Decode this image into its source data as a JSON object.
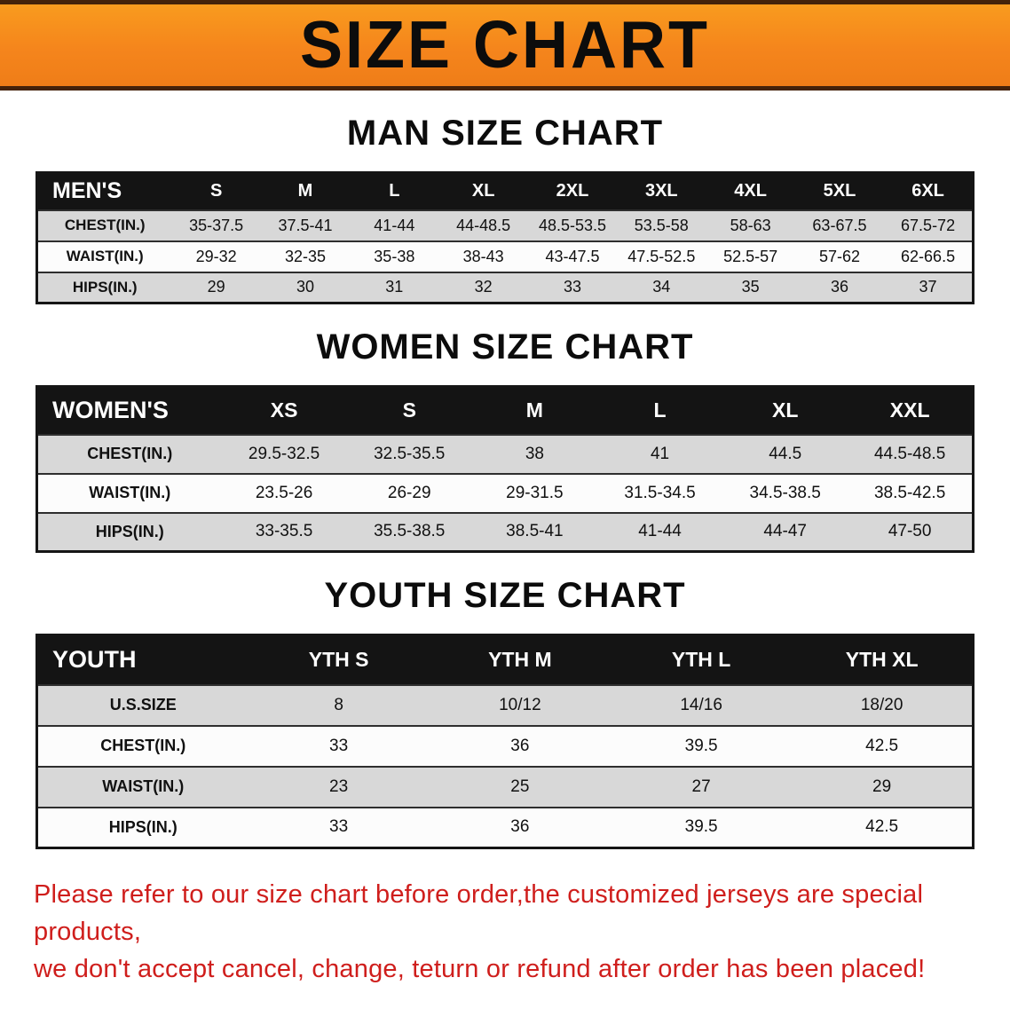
{
  "banner": {
    "title": "SIZE CHART"
  },
  "sections": [
    {
      "heading": "MAN SIZE CHART",
      "table": {
        "header": [
          "MEN'S",
          "S",
          "M",
          "L",
          "XL",
          "2XL",
          "3XL",
          "4XL",
          "5XL",
          "6XL"
        ],
        "rows": [
          [
            "CHEST(IN.)",
            "35-37.5",
            "37.5-41",
            "41-44",
            "44-48.5",
            "48.5-53.5",
            "53.5-58",
            "58-63",
            "63-67.5",
            "67.5-72"
          ],
          [
            "WAIST(IN.)",
            "29-32",
            "32-35",
            "35-38",
            "38-43",
            "43-47.5",
            "47.5-52.5",
            "52.5-57",
            "57-62",
            "62-66.5"
          ],
          [
            "HIPS(IN.)",
            "29",
            "30",
            "31",
            "32",
            "33",
            "34",
            "35",
            "36",
            "37"
          ]
        ]
      }
    },
    {
      "heading": "WOMEN SIZE CHART",
      "table": {
        "header": [
          "WOMEN'S",
          "XS",
          "S",
          "M",
          "L",
          "XL",
          "XXL"
        ],
        "rows": [
          [
            "CHEST(IN.)",
            "29.5-32.5",
            "32.5-35.5",
            "38",
            "41",
            "44.5",
            "44.5-48.5"
          ],
          [
            "WAIST(IN.)",
            "23.5-26",
            "26-29",
            "29-31.5",
            "31.5-34.5",
            "34.5-38.5",
            "38.5-42.5"
          ],
          [
            "HIPS(IN.)",
            "33-35.5",
            "35.5-38.5",
            "38.5-41",
            "41-44",
            "44-47",
            "47-50"
          ]
        ]
      }
    },
    {
      "heading": "YOUTH SIZE CHART",
      "table": {
        "header": [
          "YOUTH",
          "YTH S",
          "YTH M",
          "YTH L",
          "YTH XL"
        ],
        "rows": [
          [
            "U.S.SIZE",
            "8",
            "10/12",
            "14/16",
            "18/20"
          ],
          [
            "CHEST(IN.)",
            "33",
            "36",
            "39.5",
            "42.5"
          ],
          [
            "WAIST(IN.)",
            "23",
            "25",
            "27",
            "29"
          ],
          [
            "HIPS(IN.)",
            "33",
            "36",
            "39.5",
            "42.5"
          ]
        ]
      }
    }
  ],
  "footer": {
    "line1": "Please refer to our size chart before order,the customized jerseys are special products,",
    "line2": "we don't accept cancel, change, teturn or refund after order has been placed!"
  },
  "colors": {
    "banner_orange": "#f5851c",
    "banner_edge": "#44220a",
    "table_header_black": "#141414",
    "row_gray": "#d8d8d8",
    "footer_red": "#cf1e1c"
  }
}
